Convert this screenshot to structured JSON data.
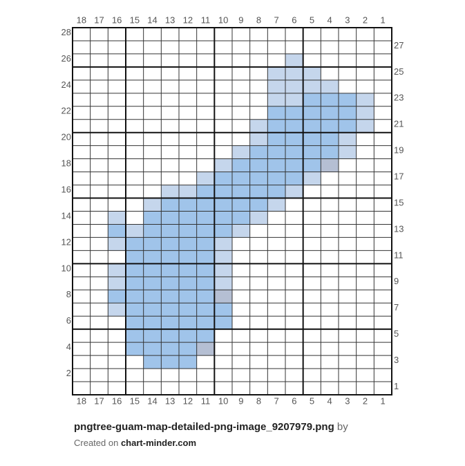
{
  "grid": {
    "columns": [
      18,
      17,
      16,
      15,
      14,
      13,
      12,
      11,
      10,
      9,
      8,
      7,
      6,
      5,
      4,
      3,
      2,
      1
    ],
    "rows_left": [
      28,
      26,
      24,
      22,
      20,
      18,
      16,
      14,
      12,
      10,
      8,
      6,
      4,
      2
    ],
    "rows_right": [
      27,
      25,
      23,
      21,
      19,
      17,
      15,
      13,
      11,
      9,
      7,
      5,
      3,
      1
    ],
    "palette": {
      "b": "#a0c4ea",
      "l": "#c5d6ec",
      "g": "#b5bfd3"
    },
    "cells": [
      "..................",
      "..................",
      "............l.....",
      "...........lll....",
      "...........llll...",
      "...........llbbbl.",
      "...........bbbbbl.",
      "..........lbbbbbl.",
      "..........lbbbbl..",
      ".........lbbbbbl..",
      "........lbbbbbg...",
      ".......lbbbbbl....",
      ".....llbbbbbl.....",
      "....lbbbbbbl......",
      "..l.bbbbbbl.......",
      "..blbbbbbl........",
      "..lbbbbbl.........",
      "...bbbbbl.........",
      "..lbbbbbl.........",
      "..lbbbbbl.........",
      "..bbbbbbg.........",
      "..lbbbbbb.........",
      "...bbbbbb.........",
      "...bbbbb..........",
      "...bbbbg..........",
      "....bbb...........",
      "..................",
      ".................."
    ]
  },
  "footer": {
    "title": "pngtree-guam-map-detailed-png-image_9207979.png",
    "by": "by",
    "created_on": "Created on",
    "site": "chart-minder.com"
  }
}
